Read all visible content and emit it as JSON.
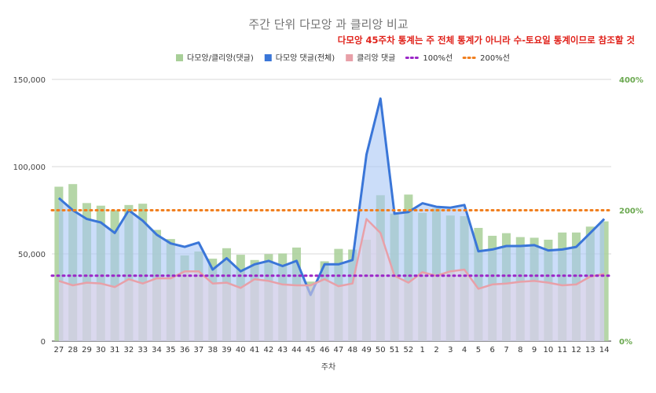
{
  "chart_data": {
    "type": "bar",
    "title": "주간 단위 다모앙 과 클리앙 비교",
    "annotation": "다모앙 45주차 통계는 주 전체 통계가 아니라 수-토요일 통계이므로 참조할 것",
    "xlabel": "주차",
    "ylabel": "",
    "categories": [
      "27",
      "28",
      "29",
      "30",
      "31",
      "32",
      "33",
      "34",
      "35",
      "36",
      "37",
      "38",
      "39",
      "40",
      "41",
      "42",
      "43",
      "44",
      "45",
      "46",
      "47",
      "48",
      "49",
      "50",
      "51",
      "52",
      "1",
      "2",
      "3",
      "4",
      "5",
      "6",
      "7",
      "8",
      "9",
      "10",
      "11",
      "12",
      "13",
      "14"
    ],
    "y_left": {
      "range": [
        0,
        150000
      ],
      "ticks": [
        "0",
        "50,000",
        "100,000",
        "150,000"
      ]
    },
    "y_right": {
      "range": [
        0,
        4
      ],
      "ticks": [
        "0%",
        "200%",
        "400%"
      ]
    },
    "grid": true,
    "legend_position": "top",
    "colors": {
      "ratio_bar": "#a8cf98",
      "damoang_line": "#3a76d8",
      "damoang_fill": "#a9c7f5",
      "clien_line": "#e8a0a8",
      "clien_fill": "#e7d3e6",
      "ref100": "#9b27c7",
      "ref200": "#f07f1f",
      "right_axis_text": "#6aa84f",
      "annotation_text": "#e0221b"
    },
    "series": [
      {
        "name": "다모앙/클리앙(댓글)",
        "type": "bar",
        "axis": "right",
        "values": [
          2.36,
          2.4,
          2.11,
          2.07,
          2.0,
          2.08,
          2.1,
          1.7,
          1.56,
          1.31,
          1.37,
          1.26,
          1.42,
          1.32,
          1.24,
          1.33,
          1.34,
          1.43,
          0.91,
          1.22,
          1.41,
          1.4,
          1.55,
          2.23,
          1.95,
          2.24,
          1.96,
          2.03,
          1.92,
          1.91,
          1.73,
          1.61,
          1.65,
          1.59,
          1.58,
          1.55,
          1.66,
          1.66,
          1.75,
          1.83
        ]
      },
      {
        "name": "다모앙 댓글(전체)",
        "type": "area",
        "axis": "left",
        "values": [
          82000,
          75000,
          70000,
          68000,
          62000,
          75000,
          69000,
          61000,
          56000,
          54000,
          56500,
          41000,
          47500,
          40000,
          44000,
          46000,
          43000,
          46000,
          26500,
          44000,
          44000,
          46500,
          107000,
          139000,
          73000,
          74000,
          79000,
          77000,
          76500,
          78000,
          51500,
          52500,
          54500,
          54500,
          55000,
          52000,
          52500,
          54000,
          62000,
          70000
        ]
      },
      {
        "name": "클리앙 댓글",
        "type": "area",
        "axis": "left",
        "values": [
          34500,
          32000,
          33500,
          33000,
          31000,
          35500,
          33000,
          36000,
          36000,
          40000,
          40000,
          33000,
          33500,
          30500,
          35500,
          34500,
          32500,
          32000,
          32000,
          35500,
          31500,
          33000,
          70000,
          62000,
          37500,
          33500,
          39500,
          37500,
          40000,
          41000,
          30000,
          32500,
          33000,
          34000,
          34500,
          33500,
          32000,
          32500,
          37000,
          38500
        ]
      },
      {
        "name": "100%선",
        "type": "reference",
        "axis": "right",
        "value": 1.0
      },
      {
        "name": "200%선",
        "type": "reference",
        "axis": "right",
        "value": 2.0
      }
    ]
  }
}
